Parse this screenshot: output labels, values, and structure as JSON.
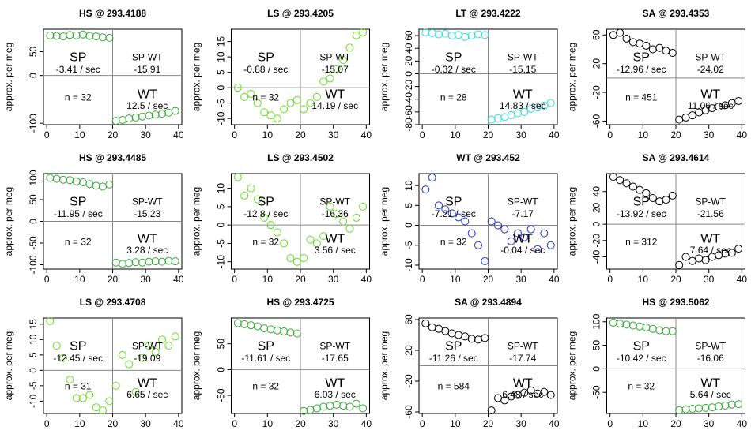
{
  "chart_data": [
    {
      "type": "scatter",
      "title": "HS @ 293.4188",
      "ylabel": "approx. per meg",
      "color": "#33aa33",
      "x": [
        1,
        3,
        5,
        7,
        9,
        11,
        13,
        15,
        17,
        19,
        21,
        23,
        25,
        27,
        29,
        31,
        33,
        35,
        37,
        39
      ],
      "values": [
        84,
        83,
        82,
        85,
        84,
        86,
        83,
        82,
        80,
        79,
        -95,
        -93,
        -90,
        -88,
        -86,
        -84,
        -82,
        -80,
        -78,
        -74
      ],
      "xlim": [
        -1,
        41
      ],
      "xticks": [
        0,
        10,
        20,
        30,
        40
      ],
      "ylim": [
        -103,
        97
      ],
      "yticks": [
        -100,
        0,
        50
      ],
      "annotations": [
        "SP",
        "-3.41 / sec",
        "SP-WT",
        "-15.91",
        "n = 32",
        "WT",
        "12.5 / sec"
      ]
    },
    {
      "type": "scatter",
      "title": "LS @ 293.4205",
      "ylabel": "approx. per meg",
      "color": "#66dd22",
      "x": [
        1,
        3,
        5,
        7,
        9,
        11,
        13,
        15,
        17,
        19,
        21,
        23,
        25,
        27,
        29,
        31,
        33,
        35,
        37,
        39
      ],
      "values": [
        0,
        -3,
        -2,
        -5,
        -8,
        -9,
        -10,
        -7,
        -5,
        -4,
        -7,
        -5,
        -3,
        2,
        3,
        6,
        9,
        13,
        17,
        18
      ],
      "xlim": [
        -1,
        41
      ],
      "xticks": [
        0,
        10,
        20,
        30,
        40
      ],
      "ylim": [
        -12,
        19
      ],
      "yticks": [
        -10,
        -5,
        0,
        5,
        10,
        15
      ],
      "annotations": [
        "SP",
        "-0.88 / sec",
        "SP-WT",
        "-15.07",
        "n = 32",
        "WT",
        "14.19 / sec"
      ]
    },
    {
      "type": "scatter",
      "title": "LT @ 293.4222",
      "ylabel": "approx. per meg",
      "color": "#33dddd",
      "x": [
        1,
        3,
        5,
        7,
        9,
        11,
        13,
        15,
        17,
        19,
        21,
        23,
        25,
        27,
        29,
        31,
        33,
        35,
        37,
        39
      ],
      "values": [
        65,
        64,
        62,
        63,
        60,
        61,
        58,
        60,
        62,
        61,
        -72,
        -70,
        -68,
        -65,
        -62,
        -60,
        -55,
        -53,
        -50,
        -46
      ],
      "xlim": [
        -1,
        41
      ],
      "xticks": [
        0,
        10,
        20,
        30,
        40
      ],
      "ylim": [
        -80,
        70
      ],
      "yticks": [
        -80,
        -60,
        -40,
        -20,
        0,
        20,
        40,
        60
      ],
      "annotations": [
        "SP",
        "-0.32 / sec",
        "SP-WT",
        "-15.15",
        "n = 28",
        "WT",
        "14.83 / sec"
      ]
    },
    {
      "type": "scatter",
      "title": "SA @ 293.4353",
      "ylabel": "approx. per meg",
      "color": "#000000",
      "x": [
        1,
        3,
        5,
        7,
        9,
        11,
        13,
        15,
        17,
        19,
        21,
        23,
        25,
        27,
        29,
        31,
        33,
        35,
        37,
        39
      ],
      "values": [
        60,
        63,
        55,
        50,
        48,
        45,
        40,
        42,
        38,
        35,
        -58,
        -55,
        -52,
        -48,
        -45,
        -42,
        -40,
        -38,
        -35,
        -32
      ],
      "xlim": [
        -1,
        41
      ],
      "xticks": [
        0,
        10,
        20,
        30,
        40
      ],
      "ylim": [
        -65,
        68
      ],
      "yticks": [
        -60,
        -20,
        20,
        60
      ],
      "annotations": [
        "SP",
        "-12.96 / sec",
        "SP-WT",
        "-24.02",
        "n = 451",
        "WT",
        "11.06 / sec"
      ]
    },
    {
      "type": "scatter",
      "title": "HS @ 293.4485",
      "ylabel": "approx. per meg",
      "color": "#33aa33",
      "x": [
        1,
        3,
        5,
        7,
        9,
        11,
        13,
        15,
        17,
        19,
        21,
        23,
        25,
        27,
        29,
        31,
        33,
        35,
        37,
        39
      ],
      "values": [
        100,
        98,
        96,
        95,
        92,
        90,
        86,
        82,
        80,
        85,
        -95,
        -98,
        -96,
        -94,
        -95,
        -93,
        -92,
        -93,
        -91,
        -92
      ],
      "xlim": [
        -1,
        41
      ],
      "xticks": [
        0,
        10,
        20,
        30,
        40
      ],
      "ylim": [
        -110,
        110
      ],
      "yticks": [
        -100,
        -50,
        0,
        50,
        100
      ],
      "annotations": [
        "SP",
        "-11.95 / sec",
        "SP-WT",
        "-15.23",
        "n = 32",
        "WT",
        "3.28 / sec"
      ]
    },
    {
      "type": "scatter",
      "title": "LS @ 293.4502",
      "ylabel": "approx. per meg",
      "color": "#66dd22",
      "x": [
        1,
        3,
        5,
        7,
        9,
        11,
        13,
        15,
        17,
        19,
        21,
        23,
        25,
        27,
        29,
        31,
        33,
        35,
        37,
        39
      ],
      "values": [
        13,
        8,
        10,
        7,
        2,
        0,
        -2,
        -5,
        -9,
        -10,
        -9,
        -4,
        -5,
        -3,
        5,
        3,
        1,
        -1,
        2,
        5
      ],
      "xlim": [
        -1,
        41
      ],
      "xticks": [
        0,
        10,
        20,
        30,
        40
      ],
      "ylim": [
        -12,
        14
      ],
      "yticks": [
        -10,
        -5,
        0,
        5,
        10
      ],
      "annotations": [
        "SP",
        "-12.8 / sec",
        "SP-WT",
        "-16.36",
        "n = 32",
        "WT",
        "3.56 / sec"
      ]
    },
    {
      "type": "scatter",
      "title": "WT @ 293.452",
      "ylabel": "approx. per meg",
      "color": "#2233cc",
      "x": [
        1,
        3,
        5,
        7,
        9,
        11,
        13,
        15,
        17,
        19,
        21,
        23,
        25,
        27,
        29,
        31,
        33,
        35,
        37,
        39
      ],
      "values": [
        9,
        12,
        5,
        4,
        3,
        2,
        1,
        -2,
        -5,
        -9,
        1,
        0,
        -1,
        -4,
        -2,
        -3,
        -1,
        -6,
        -2,
        -5
      ],
      "xlim": [
        -1,
        41
      ],
      "xticks": [
        0,
        10,
        20,
        30,
        40
      ],
      "ylim": [
        -11,
        13
      ],
      "yticks": [
        -10,
        -5,
        0,
        5,
        10
      ],
      "annotations": [
        "SP",
        "-7.21 / sec",
        "SP-WT",
        "-7.17",
        "n = 32",
        "WT",
        "-0.04 / sec"
      ]
    },
    {
      "type": "scatter",
      "title": "SA @ 293.4614",
      "ylabel": "approx. per meg",
      "color": "#000000",
      "x": [
        1,
        3,
        5,
        7,
        9,
        11,
        13,
        15,
        17,
        19,
        21,
        23,
        25,
        27,
        29,
        31,
        33,
        35,
        37,
        39
      ],
      "values": [
        58,
        54,
        50,
        46,
        42,
        38,
        32,
        28,
        30,
        35,
        -50,
        -40,
        -45,
        -42,
        -44,
        -40,
        -38,
        -36,
        -35,
        -30
      ],
      "xlim": [
        -1,
        41
      ],
      "xticks": [
        0,
        10,
        20,
        30,
        40
      ],
      "ylim": [
        -55,
        62
      ],
      "yticks": [
        -40,
        -20,
        0,
        20,
        40
      ],
      "annotations": [
        "SP",
        "-13.92 / sec",
        "SP-WT",
        "-21.56",
        "n = 312",
        "WT",
        "7.64 / sec"
      ]
    },
    {
      "type": "scatter",
      "title": "LS @ 293.4708",
      "ylabel": "approx. per meg",
      "color": "#66dd22",
      "x": [
        1,
        3,
        5,
        7,
        9,
        11,
        13,
        15,
        17,
        19,
        21,
        23,
        25,
        27,
        29,
        31,
        33,
        35,
        37,
        39
      ],
      "values": [
        16,
        8,
        4,
        -3,
        -9,
        -9,
        -8,
        -12,
        -13,
        -10,
        -5,
        5,
        2,
        -7,
        4,
        8,
        6,
        10,
        8,
        11
      ],
      "xlim": [
        -1,
        41
      ],
      "xticks": [
        0,
        10,
        20,
        30,
        40
      ],
      "ylim": [
        -14,
        17
      ],
      "yticks": [
        -10,
        -5,
        0,
        5,
        10,
        15
      ],
      "annotations": [
        "SP",
        "-12.45 / sec",
        "SP-WT",
        "-19.09",
        "n = 31",
        "WT",
        "6.65 / sec"
      ]
    },
    {
      "type": "scatter",
      "title": "HS @ 293.4725",
      "ylabel": "approx. per meg",
      "color": "#33aa33",
      "x": [
        1,
        3,
        5,
        7,
        9,
        11,
        13,
        15,
        17,
        19,
        21,
        23,
        25,
        27,
        29,
        31,
        33,
        35,
        37,
        39
      ],
      "values": [
        90,
        88,
        86,
        84,
        80,
        78,
        76,
        74,
        72,
        70,
        -80,
        -78,
        -75,
        -72,
        -70,
        -68,
        -70,
        -72,
        -66,
        -75
      ],
      "xlim": [
        -1,
        41
      ],
      "xticks": [
        0,
        10,
        20,
        30,
        40
      ],
      "ylim": [
        -85,
        100
      ],
      "yticks": [
        -50,
        0,
        50
      ],
      "annotations": [
        "SP",
        "-11.61 / sec",
        "SP-WT",
        "-17.65",
        "n = 32",
        "WT",
        "6.03 / sec"
      ]
    },
    {
      "type": "scatter",
      "title": "SA @ 293.4894",
      "ylabel": "approx. per meg",
      "color": "#000000",
      "x": [
        1,
        3,
        5,
        7,
        9,
        11,
        13,
        15,
        17,
        19,
        21,
        23,
        25,
        27,
        29,
        31,
        33,
        35,
        37,
        39
      ],
      "values": [
        55,
        50,
        48,
        45,
        42,
        40,
        38,
        35,
        34,
        36,
        -58,
        -42,
        -45,
        -40,
        -38,
        -35,
        -32,
        -36,
        -34,
        -38
      ],
      "xlim": [
        -1,
        41
      ],
      "xticks": [
        0,
        10,
        20,
        30,
        40
      ],
      "ylim": [
        -62,
        62
      ],
      "yticks": [
        -60,
        -20,
        20,
        60
      ],
      "annotations": [
        "SP",
        "-11.26 / sec",
        "SP-WT",
        "-17.74",
        "n = 584",
        "WT",
        "6.48 / sec"
      ]
    },
    {
      "type": "scatter",
      "title": "HS @ 293.5062",
      "ylabel": "approx. per meg",
      "color": "#33aa33",
      "x": [
        1,
        3,
        5,
        7,
        9,
        11,
        13,
        15,
        17,
        19,
        21,
        23,
        25,
        27,
        29,
        31,
        33,
        35,
        37,
        39
      ],
      "values": [
        98,
        96,
        94,
        92,
        90,
        88,
        85,
        82,
        80,
        80,
        -88,
        -86,
        -85,
        -84,
        -83,
        -82,
        -80,
        -78,
        -76,
        -75
      ],
      "xlim": [
        -1,
        41
      ],
      "xticks": [
        0,
        10,
        20,
        30,
        40
      ],
      "ylim": [
        -95,
        108
      ],
      "yticks": [
        -50,
        0,
        50,
        100
      ],
      "annotations": [
        "SP",
        "-10.42 / sec",
        "SP-WT",
        "-16.06",
        "n = 32",
        "WT",
        "5.64 / sec"
      ]
    }
  ]
}
